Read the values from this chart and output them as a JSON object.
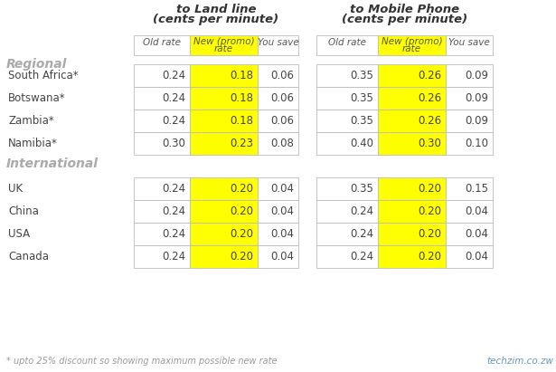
{
  "title_land_1": "to Land line",
  "title_land_2": "(cents per minute)",
  "title_mobile_1": "to Mobile Phone",
  "title_mobile_2": "(cents per minute)",
  "col_headers": [
    "Old rate",
    "New (promo)\nrate",
    "You save"
  ],
  "section_regional": "Regional",
  "section_international": "International",
  "rows_regional": [
    {
      "country": "South Africa*",
      "land_old": "0.24",
      "land_new": "0.18",
      "land_save": "0.06",
      "mob_old": "0.35",
      "mob_new": "0.26",
      "mob_save": "0.09"
    },
    {
      "country": "Botswana*",
      "land_old": "0.24",
      "land_new": "0.18",
      "land_save": "0.06",
      "mob_old": "0.35",
      "mob_new": "0.26",
      "mob_save": "0.09"
    },
    {
      "country": "Zambia*",
      "land_old": "0.24",
      "land_new": "0.18",
      "land_save": "0.06",
      "mob_old": "0.35",
      "mob_new": "0.26",
      "mob_save": "0.09"
    },
    {
      "country": "Namibia*",
      "land_old": "0.30",
      "land_new": "0.23",
      "land_save": "0.08",
      "mob_old": "0.40",
      "mob_new": "0.30",
      "mob_save": "0.10"
    }
  ],
  "rows_international": [
    {
      "country": "UK",
      "land_old": "0.24",
      "land_new": "0.20",
      "land_save": "0.04",
      "mob_old": "0.35",
      "mob_new": "0.20",
      "mob_save": "0.15"
    },
    {
      "country": "China",
      "land_old": "0.24",
      "land_new": "0.20",
      "land_save": "0.04",
      "mob_old": "0.24",
      "mob_new": "0.20",
      "mob_save": "0.04"
    },
    {
      "country": "USA",
      "land_old": "0.24",
      "land_new": "0.20",
      "land_save": "0.04",
      "mob_old": "0.24",
      "mob_new": "0.20",
      "mob_save": "0.04"
    },
    {
      "country": "Canada",
      "land_old": "0.24",
      "land_new": "0.20",
      "land_save": "0.04",
      "mob_old": "0.24",
      "mob_new": "0.20",
      "mob_save": "0.04"
    }
  ],
  "footnote": "* upto 25% discount so showing maximum possible new rate",
  "watermark": "techzim.co.zw",
  "yellow": "#FFFF00",
  "bg": "#FFFFFF",
  "border_color": "#BBBBBB",
  "section_color": "#AAAAAA",
  "header_color": "#555555",
  "data_color": "#444444",
  "title_color": "#333333",
  "watermark_color": "#6699BB"
}
